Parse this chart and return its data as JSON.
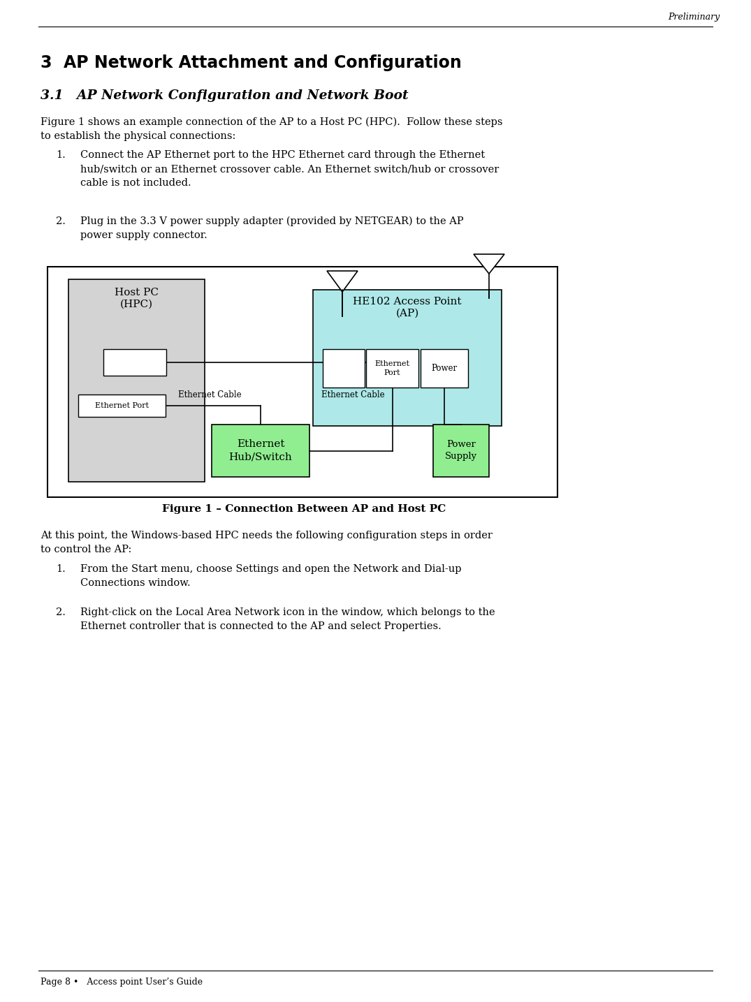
{
  "page_header_right": "Preliminary",
  "section_title": "3  AP Network Attachment and Configuration",
  "subsection_title": "3.1   AP Network Configuration and Network Boot",
  "para1": "Figure 1 shows an example connection of the AP to a Host PC (HPC).  Follow these steps\nto establish the physical connections:",
  "list1_items": [
    "Connect the AP Ethernet port to the HPC Ethernet card through the Ethernet\nhub/switch or an Ethernet crossover cable. An Ethernet switch/hub or crossover\ncable is not included.",
    "Plug in the 3.3 V power supply adapter (provided by NETGEAR) to the AP\npower supply connector."
  ],
  "figure_caption": "Figure 1 – Connection Between AP and Host PC",
  "para2": "At this point, the Windows-based HPC needs the following configuration steps in order\nto control the AP:",
  "list2_items": [
    "From the Start menu, choose Settings and open the Network and Dial-up\nConnections window.",
    "Right-click on the Local Area Network icon in the window, which belongs to the\nEthernet controller that is connected to the AP and select Properties."
  ],
  "footer_text": "Page 8 •   Access point User’s Guide",
  "bg_color": "#ffffff",
  "text_color": "#000000"
}
